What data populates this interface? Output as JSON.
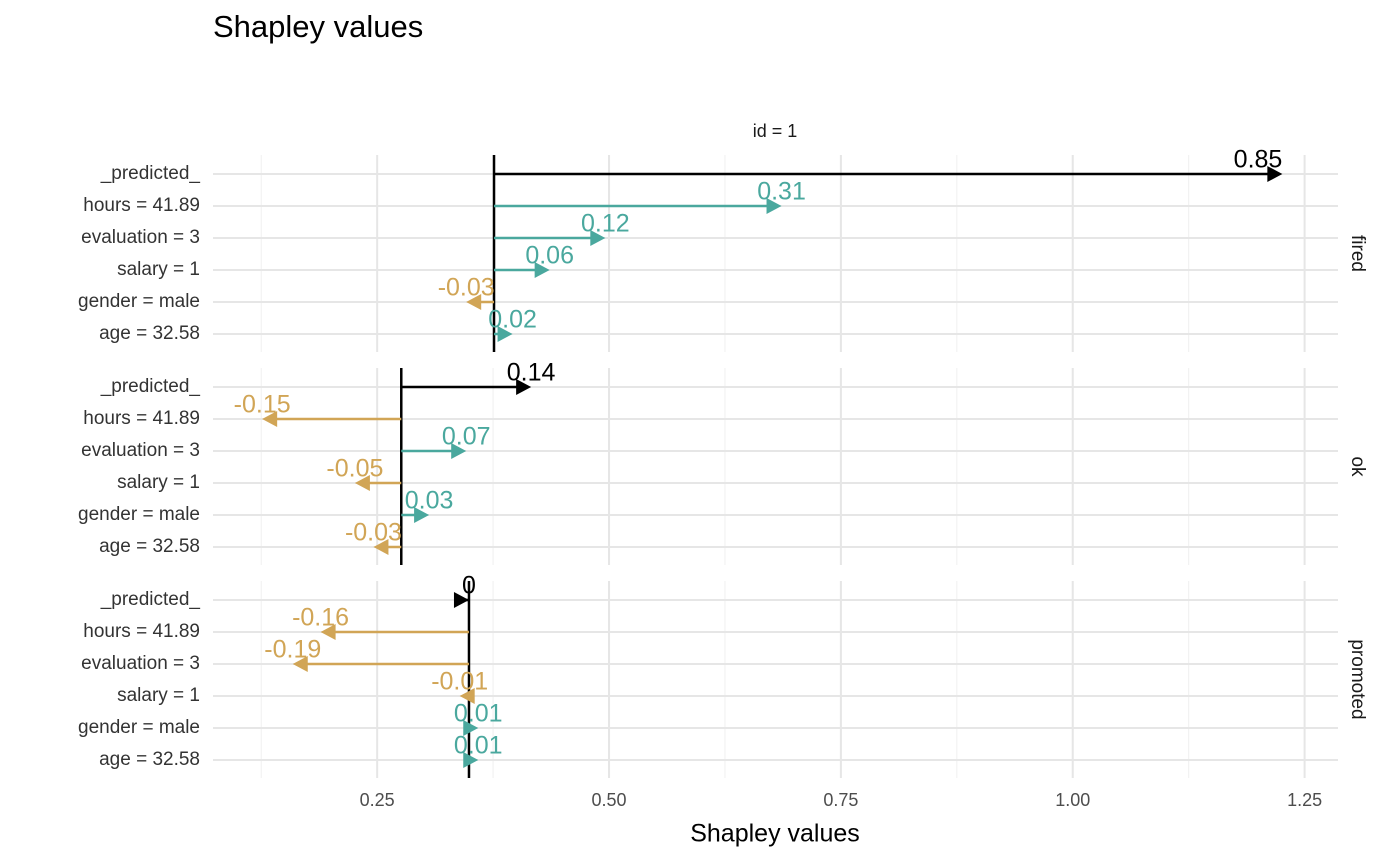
{
  "chart_data": {
    "type": "arrow",
    "title": "Shapley values",
    "facet_title": "id = 1",
    "x_label": "Shapley values",
    "categories": [
      "_predicted_",
      "hours = 41.89",
      "evaluation = 3",
      "salary = 1",
      "gender = male",
      "age = 32.58"
    ],
    "xlim": [
      0.073,
      1.286
    ],
    "xticks": [
      0.25,
      {
        "value": 0.5,
        "label": "0.50"
      },
      0.75,
      {
        "value": 1,
        "label": "1.00"
      },
      1.25
    ],
    "xticks_minor": [
      0.125,
      0.375,
      0.625,
      0.875,
      1.125
    ],
    "grid": true,
    "positive_color": "#4aa89e",
    "negative_color": "#d1a556",
    "predicted_color": "#000000",
    "panels": [
      {
        "name": "fired",
        "baseline": 0.376,
        "values": [
          0.85,
          0.31,
          0.12,
          0.06,
          -0.03,
          0.02
        ]
      },
      {
        "name": "ok",
        "baseline": 0.276,
        "values": [
          0.14,
          -0.15,
          0.07,
          -0.05,
          0.03,
          -0.03
        ]
      },
      {
        "name": "promoted",
        "baseline": 0.349,
        "values": [
          0,
          -0.16,
          -0.19,
          -0.01,
          0.01,
          0.01
        ]
      }
    ]
  }
}
